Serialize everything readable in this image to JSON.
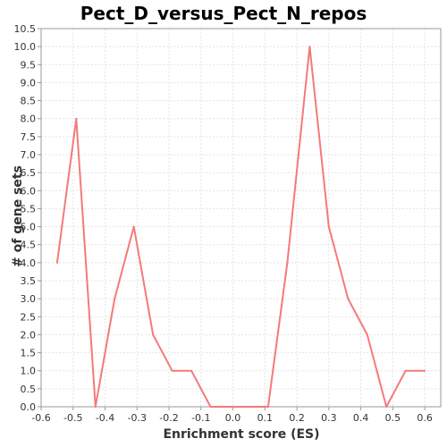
{
  "chart_data": {
    "type": "line",
    "title": "Pect_D_versus_Pect_N_repos",
    "xlabel": "Enrichment score (ES)",
    "ylabel": "# of gene sets",
    "xlim": [
      -0.6,
      0.65
    ],
    "ylim": [
      0.0,
      10.5
    ],
    "x_ticks": [
      "-0.6",
      "-0.5",
      "-0.4",
      "-0.3",
      "-0.2",
      "-0.1",
      "0.0",
      "0.1",
      "0.2",
      "0.3",
      "0.4",
      "0.5",
      "0.6"
    ],
    "y_ticks": [
      "0.0",
      "0.5",
      "1.0",
      "1.5",
      "2.0",
      "2.5",
      "3.0",
      "3.5",
      "4.0",
      "4.5",
      "5.0",
      "5.5",
      "6.0",
      "6.5",
      "7.0",
      "7.5",
      "8.0",
      "8.5",
      "9.0",
      "9.5",
      "10.0",
      "10.5"
    ],
    "grid": true,
    "series": [
      {
        "color": "#f47a7a",
        "x": [
          -0.55,
          -0.49,
          -0.43,
          -0.37,
          -0.31,
          -0.25,
          -0.19,
          -0.13,
          -0.07,
          -0.01,
          0.05,
          0.11,
          0.17,
          0.24,
          0.3,
          0.36,
          0.42,
          0.48,
          0.54,
          0.6
        ],
        "y": [
          4,
          8,
          0,
          3,
          5,
          2,
          1,
          1,
          0,
          0,
          0,
          0,
          4,
          10,
          5,
          3,
          2,
          0,
          1,
          1
        ]
      }
    ]
  }
}
